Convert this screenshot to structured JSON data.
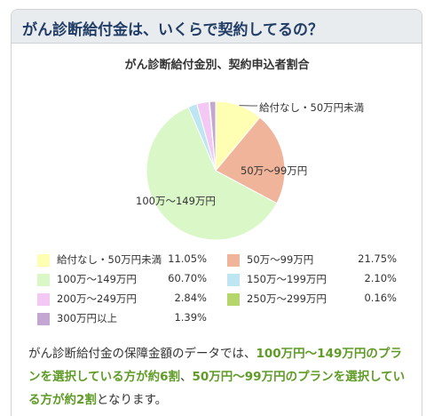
{
  "header": {
    "title": "がん診断給付金は、いくらで契約してるの？"
  },
  "chart_data": {
    "type": "pie",
    "title": "がん診断給付金別、契約申込者割合",
    "slices": [
      {
        "label": "給付なし・50万円未満",
        "value": 11.05,
        "value_label": "11.05%",
        "color": "#ffffb3"
      },
      {
        "label": "50万～99万円",
        "value": 21.75,
        "value_label": "21.75%",
        "color": "#f0b49a"
      },
      {
        "label": "100万～149万円",
        "value": 60.7,
        "value_label": "60.70%",
        "color": "#d9f7c7"
      },
      {
        "label": "150万～199万円",
        "value": 2.1,
        "value_label": "2.10%",
        "color": "#bde6f2"
      },
      {
        "label": "200万～249万円",
        "value": 2.84,
        "value_label": "2.84%",
        "color": "#f4c8f4"
      },
      {
        "label": "250万～299万円",
        "value": 0.16,
        "value_label": "0.16%",
        "color": "#b5d66a"
      },
      {
        "label": "300万円以上",
        "value": 1.39,
        "value_label": "1.39%",
        "color": "#c3a6d2"
      }
    ],
    "pie_labels": [
      "給付なし・50万円未満",
      "50万～99万円",
      "100万～149万円"
    ]
  },
  "note": {
    "p1": "がん診断給付金の保障金額のデータでは、",
    "h1": "100万円～149万円のプランを選択している方が約6割",
    "p2": "、",
    "h2": "50万円～99万円のプランを選択している方が約2割",
    "p3": "となります。"
  }
}
